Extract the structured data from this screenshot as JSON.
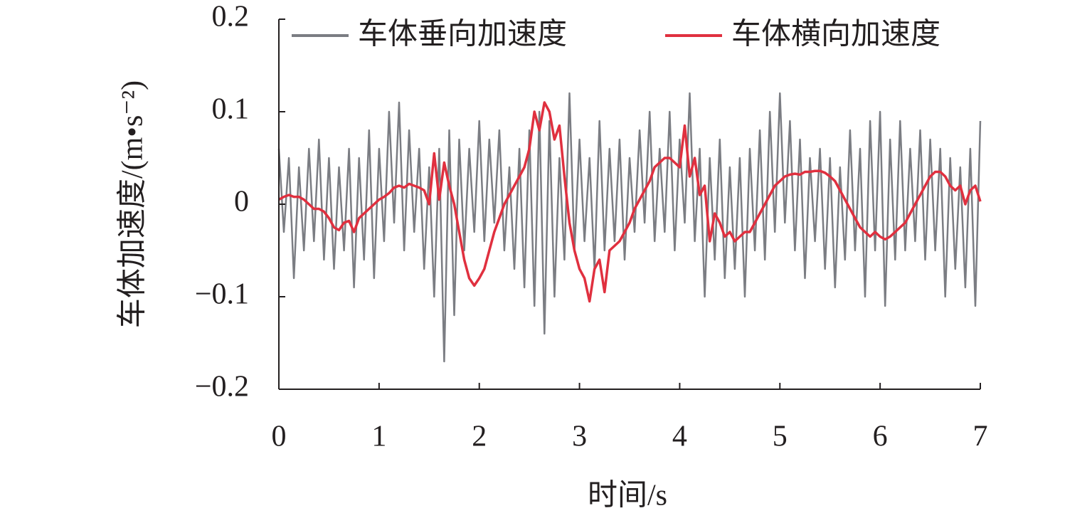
{
  "chart_data": {
    "type": "line",
    "xlabel": "时间/s",
    "ylabel": "车体加速度/(m•s⁻²)",
    "x": [
      0,
      0.05,
      0.1,
      0.15,
      0.2,
      0.25,
      0.3,
      0.35,
      0.4,
      0.45,
      0.5,
      0.55,
      0.6,
      0.65,
      0.7,
      0.75,
      0.8,
      0.85,
      0.9,
      0.95,
      1,
      1.05,
      1.1,
      1.15,
      1.2,
      1.25,
      1.3,
      1.35,
      1.4,
      1.45,
      1.5,
      1.55,
      1.6,
      1.65,
      1.7,
      1.75,
      1.8,
      1.85,
      1.9,
      1.95,
      2,
      2.05,
      2.1,
      2.15,
      2.2,
      2.25,
      2.3,
      2.35,
      2.4,
      2.45,
      2.5,
      2.55,
      2.6,
      2.65,
      2.7,
      2.75,
      2.8,
      2.85,
      2.9,
      2.95,
      3,
      3.05,
      3.1,
      3.15,
      3.2,
      3.25,
      3.3,
      3.35,
      3.4,
      3.45,
      3.5,
      3.55,
      3.6,
      3.65,
      3.7,
      3.75,
      3.8,
      3.85,
      3.9,
      3.95,
      4,
      4.05,
      4.1,
      4.15,
      4.2,
      4.25,
      4.3,
      4.35,
      4.4,
      4.45,
      4.5,
      4.55,
      4.6,
      4.65,
      4.7,
      4.75,
      4.8,
      4.85,
      4.9,
      4.95,
      5,
      5.05,
      5.1,
      5.15,
      5.2,
      5.25,
      5.3,
      5.35,
      5.4,
      5.45,
      5.5,
      5.55,
      5.6,
      5.65,
      5.7,
      5.75,
      5.8,
      5.85,
      5.9,
      5.95,
      6,
      6.05,
      6.1,
      6.15,
      6.2,
      6.25,
      6.3,
      6.35,
      6.4,
      6.45,
      6.5,
      6.55,
      6.6,
      6.65,
      6.7,
      6.75,
      6.8,
      6.85,
      6.9,
      6.95,
      7
    ],
    "series": [
      {
        "name": "车体垂向加速度",
        "color": "#7b7d83",
        "values": [
          0.06,
          -0.03,
          0.05,
          -0.08,
          0.04,
          -0.05,
          0.06,
          -0.04,
          0.07,
          -0.06,
          0.05,
          -0.07,
          0.04,
          -0.05,
          0.06,
          -0.09,
          0.05,
          -0.06,
          0.08,
          -0.08,
          0.06,
          -0.04,
          0.1,
          -0.02,
          0.11,
          -0.05,
          0.08,
          -0.03,
          0.06,
          -0.07,
          0.04,
          -0.1,
          0.06,
          -0.17,
          0.08,
          -0.12,
          0.07,
          -0.05,
          0.06,
          -0.03,
          0.09,
          -0.04,
          0.07,
          -0.02,
          0.08,
          -0.05,
          0.04,
          -0.07,
          0.06,
          -0.09,
          0.08,
          -0.11,
          0.1,
          -0.14,
          0.09,
          -0.1,
          0.05,
          -0.06,
          0.12,
          -0.05,
          0.07,
          -0.04,
          0.05,
          -0.07,
          0.09,
          -0.05,
          0.06,
          -0.04,
          0.07,
          -0.06,
          0.05,
          -0.03,
          0.08,
          -0.02,
          0.1,
          -0.04,
          0.06,
          -0.03,
          0.1,
          -0.05,
          0.07,
          -0.02,
          0.12,
          -0.04,
          0.06,
          -0.1,
          0.05,
          -0.06,
          0.07,
          -0.08,
          0.04,
          -0.07,
          0.05,
          -0.1,
          0.06,
          -0.05,
          0.08,
          -0.06,
          0.1,
          -0.03,
          0.12,
          -0.02,
          0.09,
          -0.05,
          0.07,
          -0.08,
          0.05,
          -0.04,
          0.06,
          -0.07,
          0.05,
          -0.09,
          0.04,
          -0.06,
          0.08,
          -0.05,
          0.06,
          -0.1,
          0.09,
          -0.05,
          0.1,
          -0.11,
          0.07,
          -0.06,
          0.09,
          -0.05,
          0.06,
          -0.04,
          0.08,
          -0.06,
          0.07,
          -0.05,
          0.06,
          -0.1,
          0.05,
          -0.07,
          0.04,
          -0.09,
          0.06,
          -0.11,
          0.09
        ]
      },
      {
        "name": "车体横向加速度",
        "color": "#e0303f",
        "values": [
          0.005,
          0.008,
          0.01,
          0.008,
          0.008,
          0.005,
          0,
          -0.005,
          -0.005,
          -0.008,
          -0.015,
          -0.025,
          -0.028,
          -0.02,
          -0.018,
          -0.03,
          -0.015,
          -0.01,
          -0.005,
          0,
          0.005,
          0.008,
          0.012,
          0.018,
          0.02,
          0.018,
          0.022,
          0.02,
          0.018,
          0.015,
          0,
          0.055,
          0.005,
          0.045,
          0.02,
          0,
          -0.03,
          -0.06,
          -0.08,
          -0.088,
          -0.08,
          -0.07,
          -0.05,
          -0.03,
          -0.015,
          0,
          0.01,
          0.02,
          0.03,
          0.04,
          0.06,
          0.1,
          0.08,
          0.11,
          0.1,
          0.07,
          0.085,
          0.03,
          -0.02,
          -0.05,
          -0.07,
          -0.08,
          -0.105,
          -0.07,
          -0.06,
          -0.095,
          -0.05,
          -0.045,
          -0.04,
          -0.03,
          -0.02,
          -0.005,
          0.005,
          0.015,
          0.025,
          0.04,
          0.045,
          0.05,
          0.05,
          0.045,
          0.04,
          0.085,
          0.03,
          0.05,
          0.01,
          0.02,
          -0.04,
          -0.01,
          -0.02,
          -0.035,
          -0.03,
          -0.04,
          -0.035,
          -0.03,
          -0.03,
          -0.02,
          -0.01,
          0,
          0.01,
          0.02,
          0.025,
          0.03,
          0.032,
          0.033,
          0.032,
          0.035,
          0.035,
          0.036,
          0.036,
          0.034,
          0.03,
          0.025,
          0.015,
          0.005,
          -0.005,
          -0.015,
          -0.025,
          -0.03,
          -0.035,
          -0.03,
          -0.035,
          -0.038,
          -0.035,
          -0.03,
          -0.025,
          -0.02,
          -0.01,
          0,
          0.01,
          0.02,
          0.03,
          0.035,
          0.035,
          0.03,
          0.02,
          0.015,
          0.02,
          0,
          0.015,
          0.02,
          0.003
        ]
      }
    ],
    "xlim": [
      0,
      7
    ],
    "xticks": [
      0,
      1,
      2,
      3,
      4,
      5,
      6,
      7
    ],
    "ylim": [
      -0.2,
      0.2
    ],
    "yticks": [
      {
        "value": -0.2,
        "label": "−0.2"
      },
      {
        "value": -0.1,
        "label": "−0.1"
      },
      0,
      0.1,
      0.2
    ]
  }
}
